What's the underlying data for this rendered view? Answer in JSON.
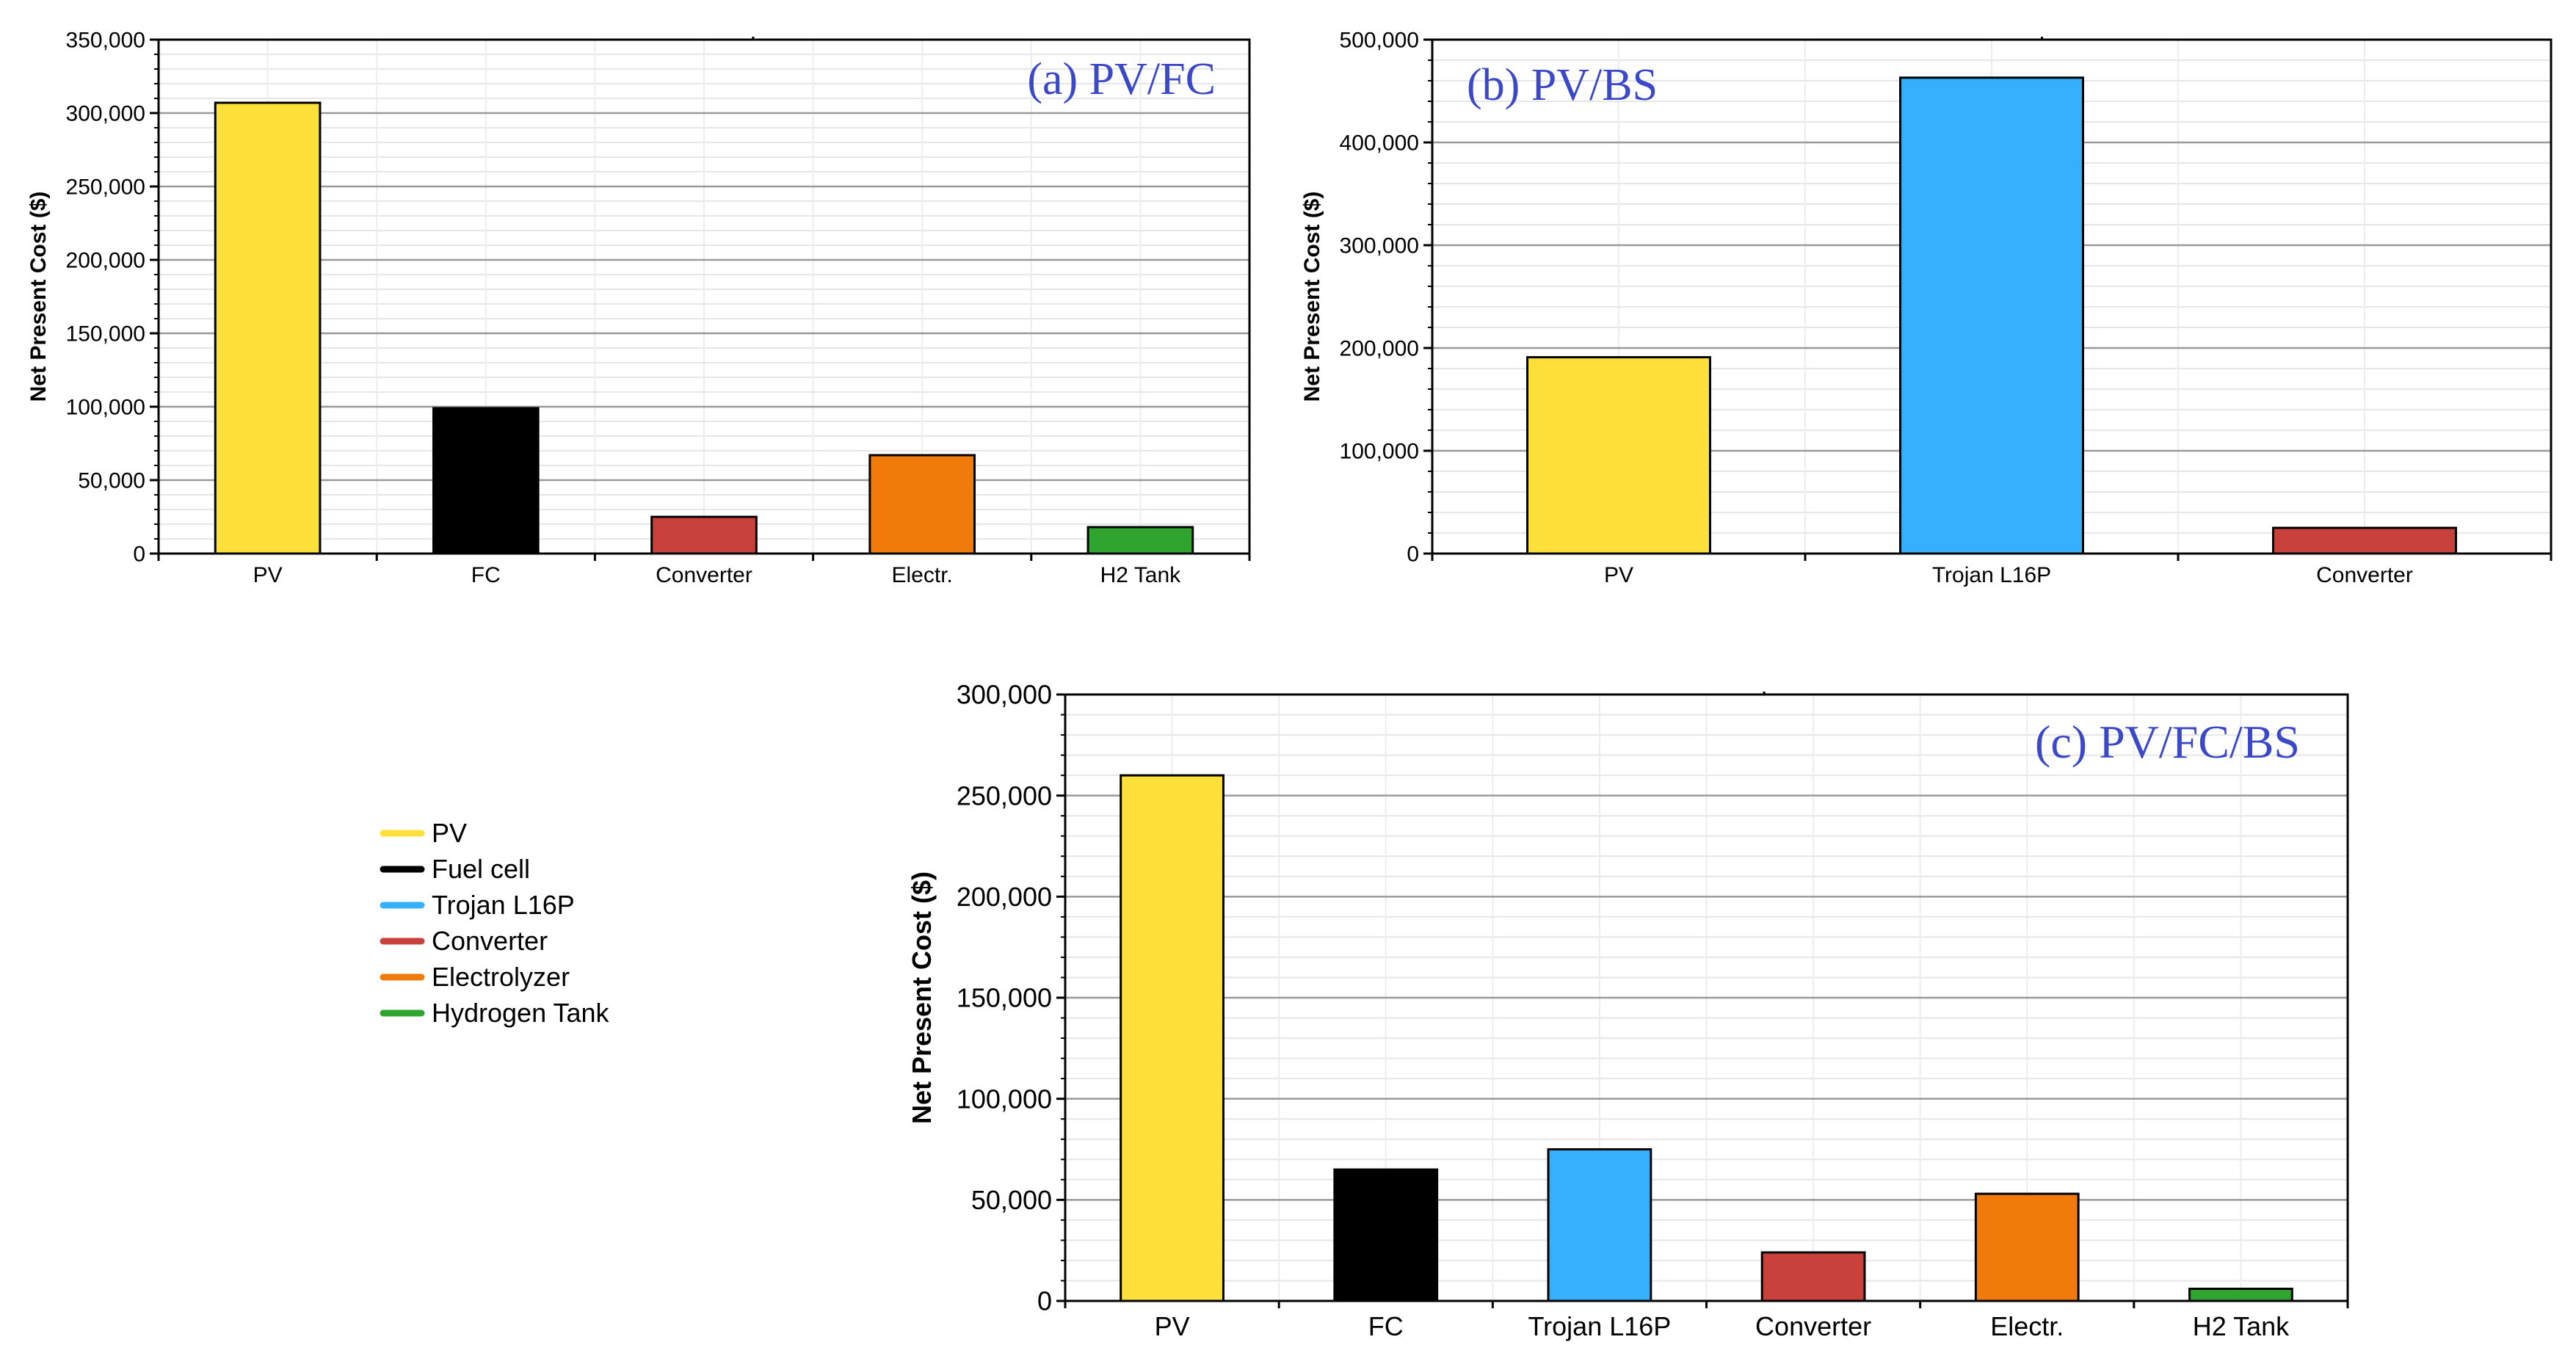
{
  "chart_data": [
    {
      "type": "bar",
      "title": "(a) PV/FC",
      "ylabel": "Net Present Cost ($)",
      "ylim": [
        0,
        350000
      ],
      "yticks": [
        0,
        50000,
        100000,
        150000,
        200000,
        250000,
        300000,
        350000
      ],
      "ytick_labels": [
        "0",
        "50,000",
        "100,000",
        "150,000",
        "200,000",
        "250,000",
        "300,000",
        "350,000"
      ],
      "categories": [
        "PV",
        "FC",
        "Converter",
        "Electr.",
        "H2 Tank"
      ],
      "values": [
        307000,
        99000,
        25000,
        67000,
        18000
      ],
      "colors": [
        "#fde03a",
        "#000000",
        "#c8413a",
        "#f07a0a",
        "#2fa52f"
      ]
    },
    {
      "type": "bar",
      "title": "(b) PV/BS",
      "ylabel": "Net Present Cost ($)",
      "ylim": [
        0,
        500000
      ],
      "yticks": [
        0,
        100000,
        200000,
        300000,
        400000,
        500000
      ],
      "ytick_labels": [
        "0",
        "100,000",
        "200,000",
        "300,000",
        "400,000",
        "500,000"
      ],
      "categories": [
        "PV",
        "Trojan L16P",
        "Converter"
      ],
      "values": [
        191000,
        463000,
        25000
      ],
      "colors": [
        "#fde03a",
        "#35b0fa",
        "#c8413a"
      ]
    },
    {
      "type": "bar",
      "title": "(c) PV/FC/BS",
      "ylabel": "Net Present Cost ($)",
      "ylim": [
        0,
        300000
      ],
      "yticks": [
        0,
        50000,
        100000,
        150000,
        200000,
        250000,
        300000
      ],
      "ytick_labels": [
        "0",
        "50,000",
        "100,000",
        "150,000",
        "200,000",
        "250,000",
        "300,000"
      ],
      "categories": [
        "PV",
        "FC",
        "Trojan L16P",
        "Converter",
        "Electr.",
        "H2 Tank"
      ],
      "values": [
        260000,
        65000,
        75000,
        24000,
        53000,
        6000
      ],
      "colors": [
        "#fde03a",
        "#000000",
        "#35b0fa",
        "#c8413a",
        "#f07a0a",
        "#2fa52f"
      ]
    }
  ],
  "legend": {
    "items": [
      {
        "label": "PV",
        "color": "#fde03a"
      },
      {
        "label": "Fuel cell",
        "color": "#000000"
      },
      {
        "label": "Trojan L16P",
        "color": "#35b0fa"
      },
      {
        "label": "Converter",
        "color": "#c8413a"
      },
      {
        "label": "Electrolyzer",
        "color": "#f07a0a"
      },
      {
        "label": "Hydrogen Tank",
        "color": "#2fa52f"
      }
    ]
  }
}
